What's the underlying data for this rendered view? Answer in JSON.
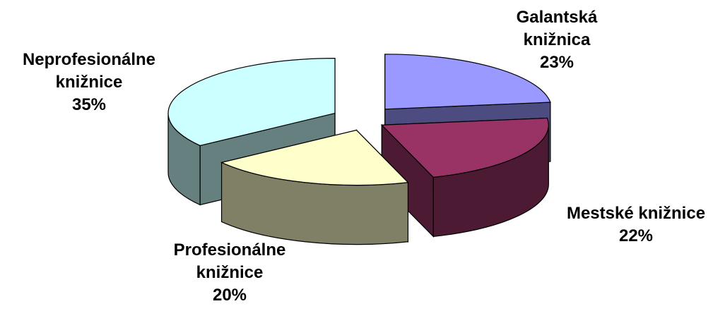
{
  "chart_data": {
    "type": "pie",
    "variant": "3d-exploded",
    "title": "",
    "slices": [
      {
        "label_lines": [
          "Galantská",
          "knižnica"
        ],
        "percent_label": "23%",
        "value": 23,
        "color": "#9999ff",
        "side_color": "#4c4c80"
      },
      {
        "label_lines": [
          "Mestské knižnice"
        ],
        "percent_label": "22%",
        "value": 22,
        "color": "#993366",
        "side_color": "#4d1a33"
      },
      {
        "label_lines": [
          "Profesionálne",
          "knižnice"
        ],
        "percent_label": "20%",
        "value": 20,
        "color": "#ffffcc",
        "side_color": "#808066"
      },
      {
        "label_lines": [
          "Neprofesionálne",
          "knižnice"
        ],
        "percent_label": "35%",
        "value": 35,
        "color": "#ccffff",
        "side_color": "#668080"
      }
    ]
  }
}
